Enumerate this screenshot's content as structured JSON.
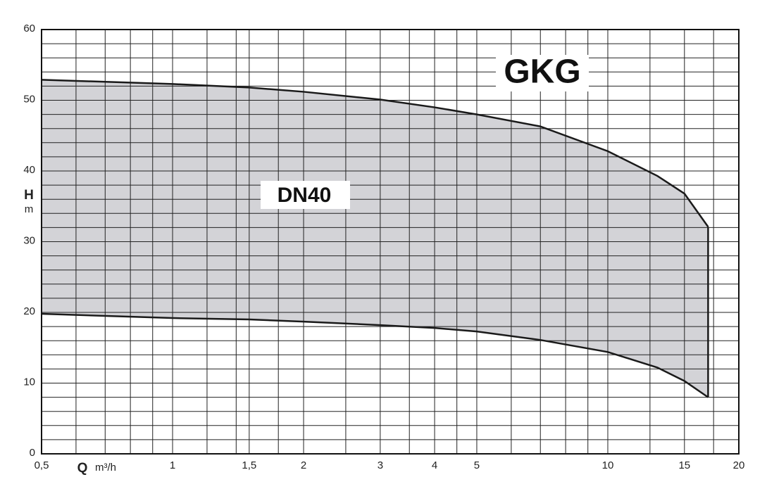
{
  "chart_data": {
    "type": "area-band",
    "title": "GKG",
    "annotation": "DN40",
    "y_label": "H",
    "y_unit": "m",
    "x_label": "Q",
    "x_unit": "m³/h",
    "x": [
      0.5,
      1,
      1.5,
      2,
      3,
      4,
      5,
      7,
      10,
      13,
      15,
      17
    ],
    "series": [
      {
        "color": "#1a1a1a",
        "values": [
          52.9,
          52.3,
          51.8,
          51.2,
          50.1,
          49,
          48,
          46.3,
          42.8,
          39.3,
          36.8,
          32.1
        ]
      },
      {
        "color": "#1a1a1a",
        "values": [
          19.8,
          19.2,
          19.0,
          18.7,
          18.2,
          17.8,
          17.3,
          16.1,
          14.4,
          12.2,
          10.3,
          8.0
        ]
      }
    ],
    "fill": "#d3d3d7",
    "xlog": true,
    "xlim": [
      0.5,
      20
    ],
    "ylim": [
      0,
      60
    ],
    "xticks": [
      {
        "value": 0.5,
        "label": "0,5"
      },
      1,
      {
        "value": 1.5,
        "label": "1,5"
      },
      2,
      3,
      4,
      5,
      10,
      15,
      20
    ],
    "xminorticks": [
      0.6,
      0.7,
      0.8,
      0.9,
      1.2,
      1.4,
      1.75,
      2.5,
      3.5,
      4.5,
      6,
      7,
      8,
      9,
      12.5,
      17.5
    ],
    "yticks": [
      0,
      10,
      20,
      30,
      40,
      50,
      60
    ],
    "yminorticks": [
      2,
      4,
      6,
      8,
      12,
      14,
      16,
      18,
      22,
      24,
      26,
      28,
      32,
      34,
      36,
      38,
      42,
      44,
      46,
      48,
      52,
      54,
      56,
      58
    ],
    "grid": true
  }
}
